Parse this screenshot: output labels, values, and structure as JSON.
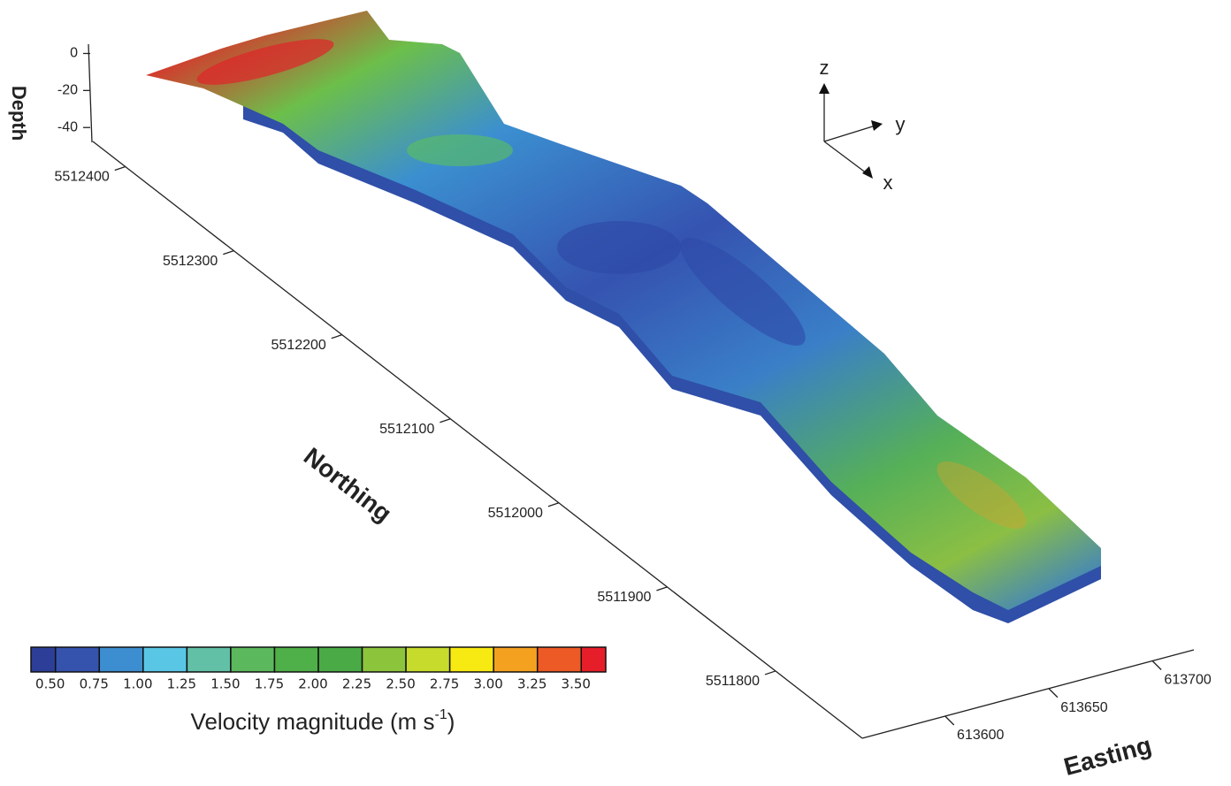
{
  "chart_data": {
    "type": "surface3d",
    "zlabel": "Depth",
    "zlim": [
      -48,
      5
    ],
    "zticks": [
      0,
      -20,
      -40
    ],
    "ylabel": "Northing",
    "ylim": [
      5511720,
      5512430
    ],
    "yticks": [
      5512400,
      5512300,
      5512200,
      5512100,
      5512000,
      5511900,
      5511800
    ],
    "xlabel": "Easting",
    "xlim": [
      613560,
      613720
    ],
    "xticks": [
      613600,
      613650,
      613700
    ],
    "orientation_labels": [
      "z",
      "y",
      "x"
    ],
    "colorbar": {
      "label": {
        "text": "Velocity magnitude (m s",
        "superscript": "-1",
        "close": ")"
      },
      "clim": [
        0.36,
        3.64
      ],
      "colors": [
        "#2c3e97",
        "#3552ad",
        "#3d8ed0",
        "#5ac6e6",
        "#62c0a6",
        "#5cb85c",
        "#4faf48",
        "#4aab46",
        "#8cc43c",
        "#c6db2c",
        "#f7ea12",
        "#f4a11f",
        "#ed5a25",
        "#e61e2a"
      ],
      "ticks": [
        {
          "value": 0.5,
          "label": "0.50"
        },
        {
          "value": 0.75,
          "label": "0.75"
        },
        {
          "value": 1.0,
          "label": "1.00"
        },
        {
          "value": 1.25,
          "label": "1.25"
        },
        {
          "value": 1.5,
          "label": "1.50"
        },
        {
          "value": 1.75,
          "label": "1.75"
        },
        {
          "value": 2.0,
          "label": "2.00"
        },
        {
          "value": 2.25,
          "label": "2.25"
        },
        {
          "value": 2.5,
          "label": "2.50"
        },
        {
          "value": 2.75,
          "label": "2.75"
        },
        {
          "value": 3.0,
          "label": "3.00"
        },
        {
          "value": 3.25,
          "label": "3.25"
        },
        {
          "value": 3.5,
          "label": "3.50"
        }
      ]
    }
  }
}
